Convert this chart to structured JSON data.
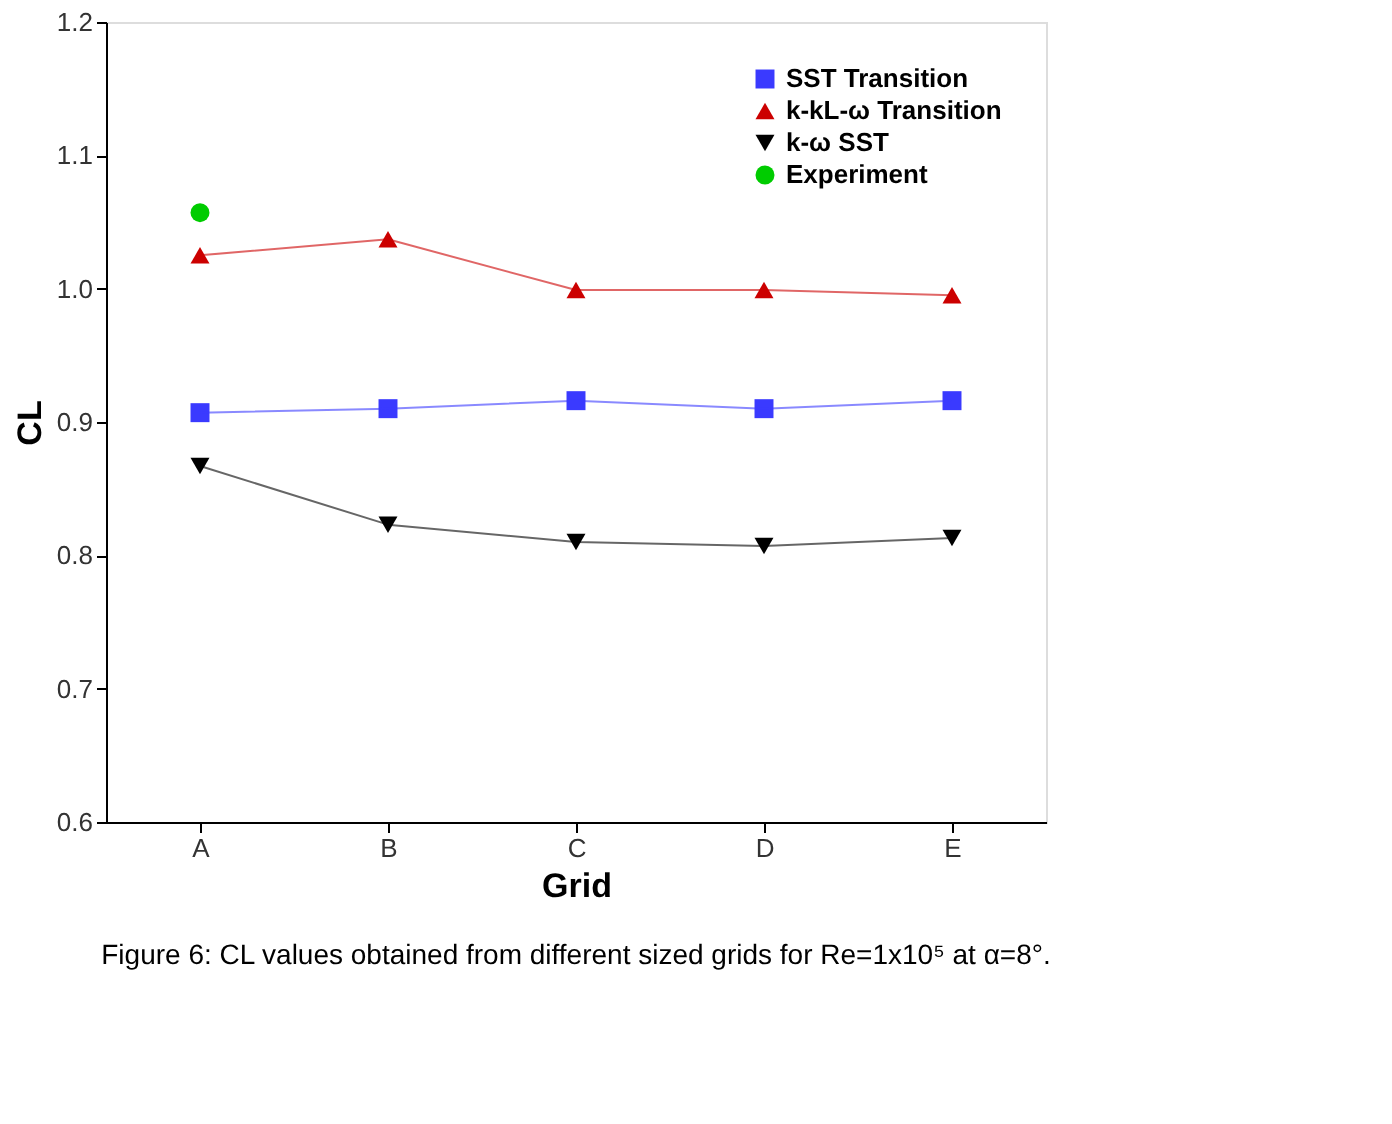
{
  "chart_data": {
    "type": "line",
    "xlabel": "Grid",
    "ylabel": "CL",
    "categories": [
      "A",
      "B",
      "C",
      "D",
      "E"
    ],
    "ylim": [
      0.6,
      1.2
    ],
    "yticks": [
      0.6,
      0.7,
      0.8,
      0.9,
      {
        "value": 1,
        "label": "1.0"
      },
      1.1,
      1.2
    ],
    "series": [
      {
        "name": "SST Transition",
        "color": "#3a3aff",
        "marker": "square",
        "values": [
          0.907,
          0.91,
          0.916,
          0.91,
          0.916
        ]
      },
      {
        "name": "k-kL-ω Transition",
        "color": "#cc0000",
        "marker": "triangle",
        "values": [
          1.025,
          1.037,
          0.999,
          0.999,
          0.995
        ]
      },
      {
        "name": "k-ω SST",
        "color": "#000000",
        "marker": "triangle-down",
        "values": [
          0.867,
          0.823,
          0.81,
          0.807,
          0.813
        ]
      },
      {
        "name": "Experiment",
        "color": "#00cc00",
        "type": "scatter",
        "marker": "circle",
        "values": [
          1.057,
          null,
          null,
          null,
          null
        ]
      }
    ],
    "legend": "top right",
    "grid": false,
    "annotations": [
      "Figure 6: CL values obtained from different sized grids for Re=1x10⁵ at α=8°."
    ]
  }
}
